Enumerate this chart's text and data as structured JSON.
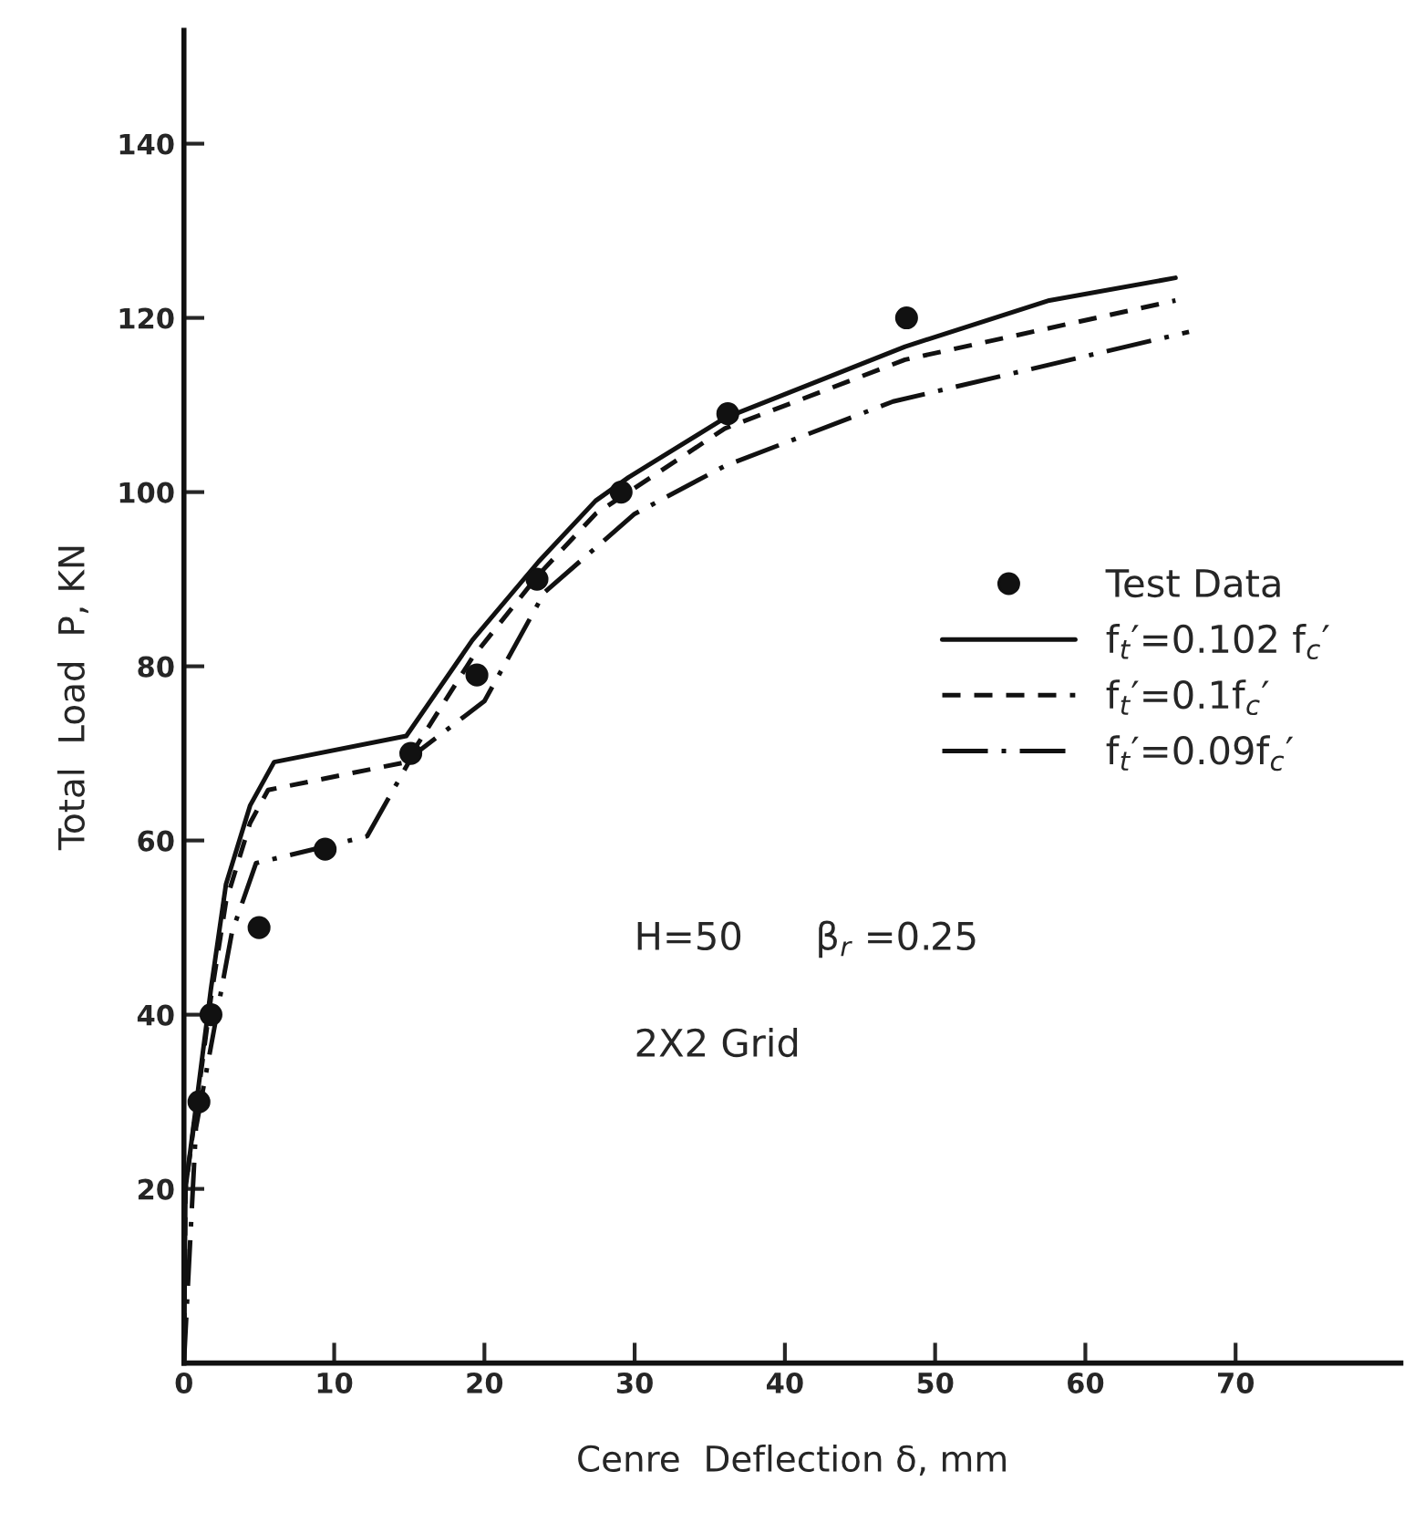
{
  "chart_data": {
    "type": "line",
    "xlabel": "Cenre  Deflection δ, mm",
    "ylabel": "Total  Load  P, KN",
    "xlim": [
      0,
      81
    ],
    "ylim": [
      0,
      153
    ],
    "xticks": [
      0,
      10,
      20,
      30,
      40,
      50,
      60,
      70
    ],
    "yticks": [
      20,
      40,
      60,
      80,
      100,
      120,
      140
    ],
    "grid": false,
    "legend": "right",
    "series": [
      {
        "name": "Test Data",
        "type": "scatter",
        "marker": "circle",
        "color": "#111111",
        "x": [
          1.0,
          1.8,
          5.0,
          9.4,
          15.1,
          19.5,
          23.5,
          29.1,
          36.2,
          48.1
        ],
        "values": [
          30,
          40,
          50,
          59,
          70,
          79,
          90,
          100,
          109,
          120
        ]
      },
      {
        "name": "f$_{t}$′=0.102 f$_{c}$′",
        "line_style": "solid",
        "color": "#111111",
        "x": [
          0,
          0.1,
          1.8,
          2.8,
          4.4,
          6,
          14.8,
          19.2,
          23.6,
          27.4,
          29.6,
          36,
          48,
          57.6,
          66
        ],
        "values": [
          0,
          20,
          43,
          55,
          64,
          69,
          72,
          83,
          92,
          99,
          101.7,
          108.5,
          116.7,
          122,
          124.6
        ]
      },
      {
        "name": "f$_{t}$′=0.1f$_{c}$′",
        "line_style": "dashed",
        "color": "#111111",
        "x": [
          0,
          0.1,
          1.8,
          2.8,
          4.4,
          5.6,
          14.8,
          19.2,
          23.6,
          27.4,
          29.6,
          36,
          48,
          66
        ],
        "values": [
          0,
          20,
          42,
          53,
          62,
          65.8,
          69,
          81,
          90.5,
          97.5,
          100,
          107.3,
          115.2,
          122
        ]
      },
      {
        "name": "f$_{t}$′=0.09f$_{c}$′",
        "line_style": "dashdot",
        "color": "#111111",
        "x": [
          0,
          0.8,
          3.2,
          4.8,
          9.4,
          12.2,
          15.2,
          20,
          24,
          30,
          36,
          47.2,
          66.9
        ],
        "values": [
          0,
          27,
          49.5,
          57.4,
          59.3,
          60.5,
          69.7,
          76,
          88.5,
          97.5,
          103,
          110.4,
          118.4
        ]
      }
    ],
    "annotations": [
      "H=50      β$_{r}$ =0.25",
      "2X2 Grid"
    ]
  }
}
